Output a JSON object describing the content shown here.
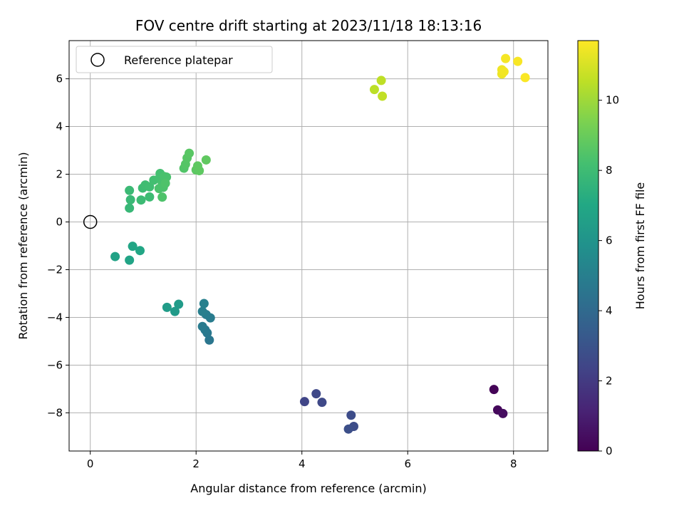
{
  "chart_data": {
    "type": "scatter",
    "title": "FOV centre drift starting at 2023/11/18 18:13:16",
    "xlabel": "Angular distance from reference (arcmin)",
    "ylabel": "Rotation from reference (arcmin)",
    "xlim": [
      -0.4,
      8.65
    ],
    "ylim": [
      -9.6,
      7.6
    ],
    "xticks": [
      "0",
      "2",
      "4",
      "6",
      "8"
    ],
    "yticks": [
      "−8",
      "−6",
      "−4",
      "−2",
      "0",
      "2",
      "4",
      "6"
    ],
    "grid": true,
    "legend": {
      "placement": "top-left",
      "label": "Reference platepar"
    },
    "reference_point": {
      "x": 0,
      "y": 0
    },
    "colorbar": {
      "label": "Hours from first FF file",
      "range": [
        0,
        11.7
      ],
      "ticks": [
        "0",
        "2",
        "4",
        "6",
        "8",
        "10"
      ],
      "colormap": "viridis"
    },
    "points": [
      {
        "x": 7.63,
        "y": -7.02,
        "h": 0.1
      },
      {
        "x": 7.7,
        "y": -7.88,
        "h": 0.25
      },
      {
        "x": 7.8,
        "y": -8.03,
        "h": 0.4
      },
      {
        "x": 4.05,
        "y": -7.53,
        "h": 2.4
      },
      {
        "x": 4.27,
        "y": -7.2,
        "h": 2.5
      },
      {
        "x": 4.38,
        "y": -7.56,
        "h": 2.55
      },
      {
        "x": 4.93,
        "y": -8.1,
        "h": 2.7
      },
      {
        "x": 4.98,
        "y": -8.57,
        "h": 2.75
      },
      {
        "x": 4.88,
        "y": -8.68,
        "h": 2.8
      },
      {
        "x": 2.25,
        "y": -4.95,
        "h": 4.6
      },
      {
        "x": 2.21,
        "y": -4.65,
        "h": 4.7
      },
      {
        "x": 2.17,
        "y": -4.52,
        "h": 4.75
      },
      {
        "x": 2.12,
        "y": -4.38,
        "h": 4.8
      },
      {
        "x": 2.27,
        "y": -4.02,
        "h": 4.85
      },
      {
        "x": 2.19,
        "y": -3.88,
        "h": 4.9
      },
      {
        "x": 2.12,
        "y": -3.75,
        "h": 5.0
      },
      {
        "x": 2.15,
        "y": -3.42,
        "h": 5.05
      },
      {
        "x": 1.6,
        "y": -3.75,
        "h": 6.3
      },
      {
        "x": 1.67,
        "y": -3.45,
        "h": 6.35
      },
      {
        "x": 1.45,
        "y": -3.58,
        "h": 6.4
      },
      {
        "x": 0.47,
        "y": -1.45,
        "h": 6.7
      },
      {
        "x": 0.74,
        "y": -1.6,
        "h": 6.8
      },
      {
        "x": 0.8,
        "y": -1.02,
        "h": 6.85
      },
      {
        "x": 0.94,
        "y": -1.2,
        "h": 6.9
      },
      {
        "x": 0.74,
        "y": 0.58,
        "h": 7.8
      },
      {
        "x": 0.76,
        "y": 0.93,
        "h": 7.85
      },
      {
        "x": 0.74,
        "y": 1.32,
        "h": 7.9
      },
      {
        "x": 0.96,
        "y": 0.92,
        "h": 7.95
      },
      {
        "x": 1.12,
        "y": 1.05,
        "h": 8.0
      },
      {
        "x": 0.99,
        "y": 1.42,
        "h": 8.0
      },
      {
        "x": 1.04,
        "y": 1.55,
        "h": 8.05
      },
      {
        "x": 1.12,
        "y": 1.47,
        "h": 8.1
      },
      {
        "x": 1.2,
        "y": 1.75,
        "h": 8.15
      },
      {
        "x": 1.31,
        "y": 1.85,
        "h": 8.2
      },
      {
        "x": 1.32,
        "y": 2.03,
        "h": 8.2
      },
      {
        "x": 1.36,
        "y": 1.65,
        "h": 8.25
      },
      {
        "x": 1.4,
        "y": 1.9,
        "h": 8.3
      },
      {
        "x": 1.44,
        "y": 1.88,
        "h": 8.3
      },
      {
        "x": 1.3,
        "y": 1.4,
        "h": 8.35
      },
      {
        "x": 1.38,
        "y": 1.45,
        "h": 8.35
      },
      {
        "x": 1.42,
        "y": 1.62,
        "h": 8.4
      },
      {
        "x": 1.36,
        "y": 1.04,
        "h": 8.4
      },
      {
        "x": 1.77,
        "y": 2.25,
        "h": 8.5
      },
      {
        "x": 1.8,
        "y": 2.42,
        "h": 8.55
      },
      {
        "x": 1.83,
        "y": 2.68,
        "h": 8.6
      },
      {
        "x": 1.87,
        "y": 2.88,
        "h": 8.65
      },
      {
        "x": 2.0,
        "y": 2.18,
        "h": 8.7
      },
      {
        "x": 2.03,
        "y": 2.35,
        "h": 8.75
      },
      {
        "x": 2.06,
        "y": 2.15,
        "h": 8.75
      },
      {
        "x": 2.19,
        "y": 2.6,
        "h": 8.8
      },
      {
        "x": 5.37,
        "y": 5.55,
        "h": 10.5
      },
      {
        "x": 5.5,
        "y": 5.93,
        "h": 10.55
      },
      {
        "x": 5.52,
        "y": 5.27,
        "h": 10.6
      },
      {
        "x": 7.78,
        "y": 6.2,
        "h": 11.4
      },
      {
        "x": 7.78,
        "y": 6.38,
        "h": 11.45
      },
      {
        "x": 7.82,
        "y": 6.3,
        "h": 11.5
      },
      {
        "x": 7.85,
        "y": 6.85,
        "h": 11.55
      },
      {
        "x": 8.08,
        "y": 6.73,
        "h": 11.6
      },
      {
        "x": 8.22,
        "y": 6.05,
        "h": 11.65
      }
    ]
  }
}
